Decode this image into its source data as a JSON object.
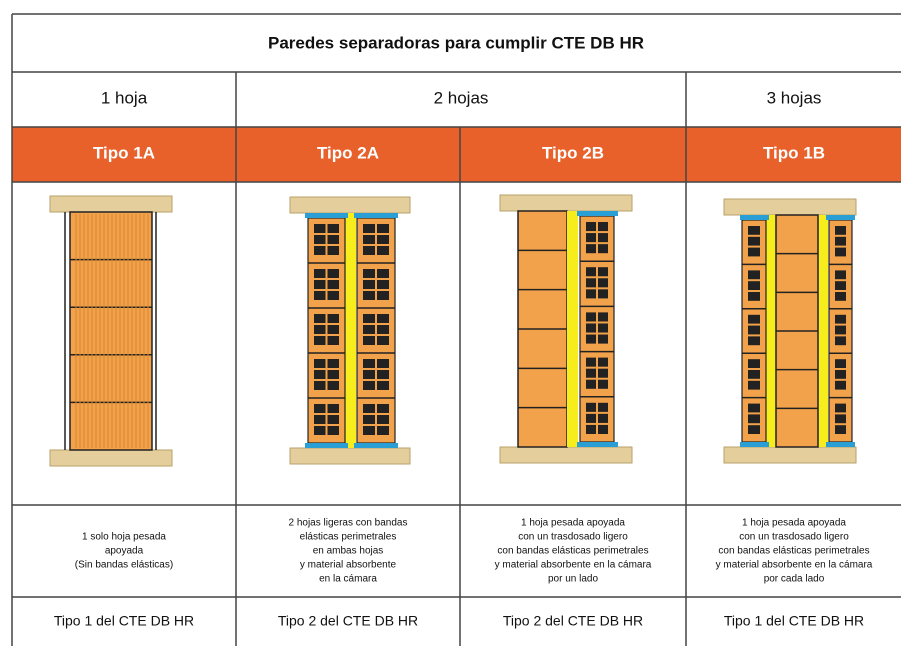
{
  "table": {
    "title": "Paredes separadoras para cumplir CTE DB HR",
    "groups": [
      "1 hoja",
      "2 hojas",
      "3 hojas"
    ],
    "types": [
      "Tipo 1A",
      "Tipo 2A",
      "Tipo 2B",
      "Tipo 1B"
    ],
    "descriptions": [
      [
        "1 solo hoja pesada",
        "apoyada",
        "(Sin bandas elásticas)"
      ],
      [
        "2 hojas ligeras con bandas",
        "elásticas perimetrales",
        "en ambas hojas",
        "y material absorbente",
        "en la cámara"
      ],
      [
        "1 hoja pesada apoyada",
        "con un trasdosado ligero",
        "con bandas elásticas perimetrales",
        "y material absorbente en la cámara",
        "por un lado"
      ],
      [
        "1 hoja pesada apoyada",
        "con un trasdosado ligero",
        "con bandas elásticas perimetrales",
        "y material absorbente en la cámara",
        "por cada lado"
      ]
    ],
    "references": [
      "Tipo 1 del CTE DB HR",
      "Tipo 2 del CTE DB HR",
      "Tipo 2 del CTE DB HR",
      "Tipo 1 del CTE DB HR"
    ]
  }
}
